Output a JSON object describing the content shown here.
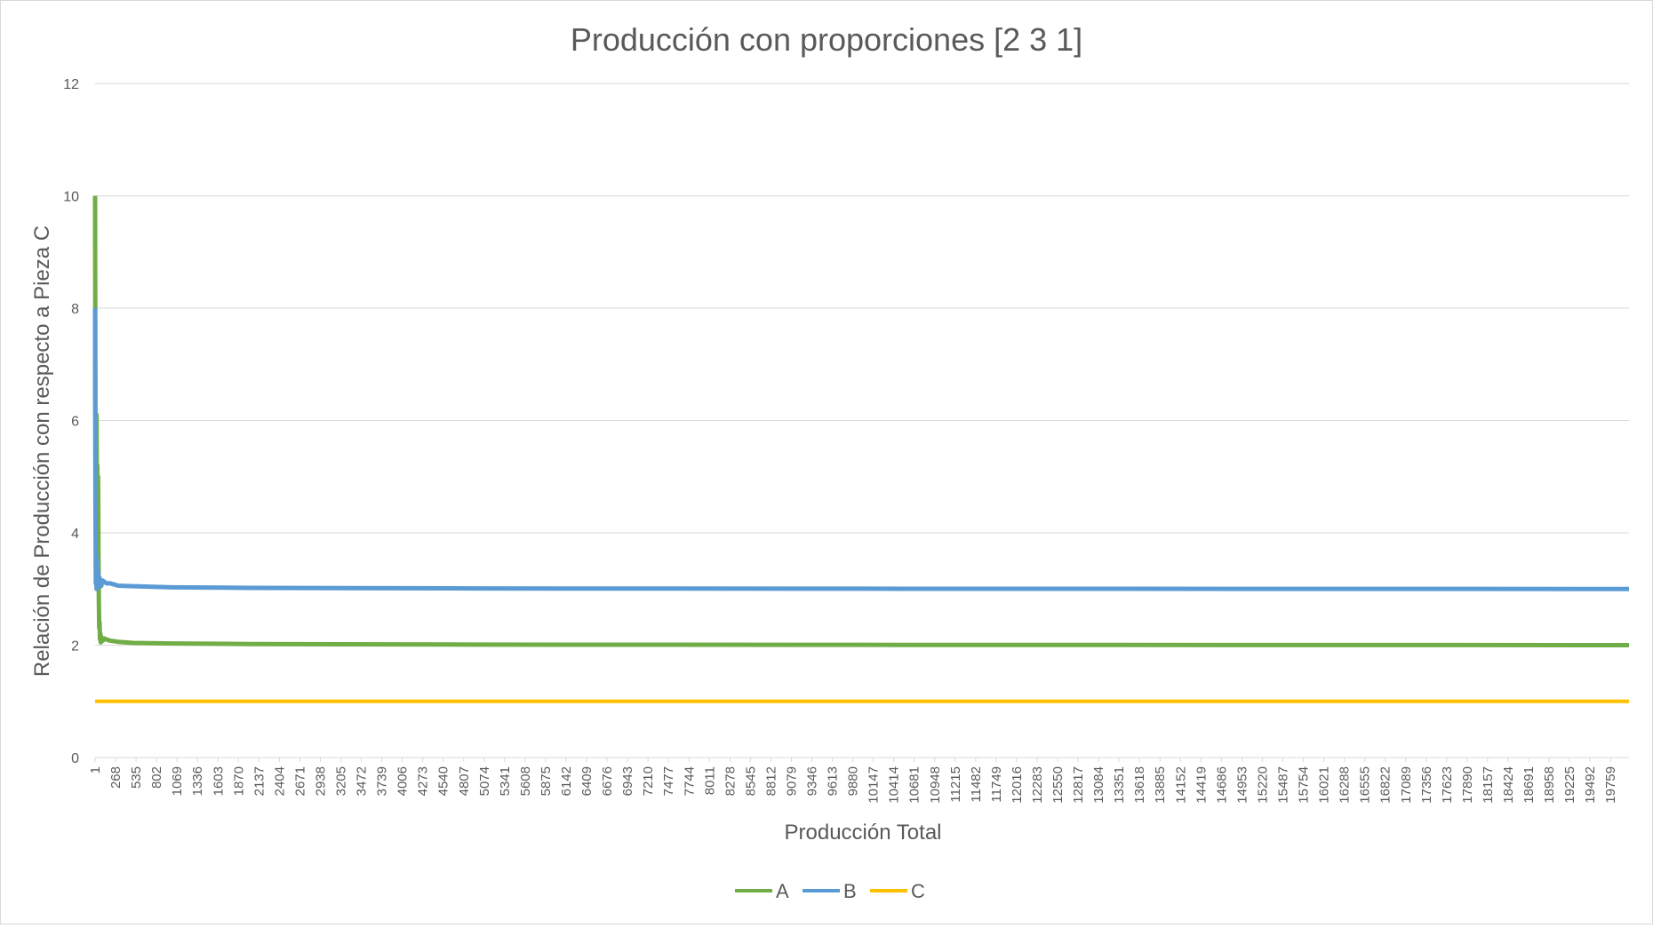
{
  "chart_data": {
    "type": "line",
    "title": "Producción con proporciones [2 3 1]",
    "xlabel": "Producción Total",
    "ylabel": "Relación de Producción con respecto a Pieza C",
    "ylim": [
      0,
      12
    ],
    "yticks": [
      0,
      2,
      4,
      6,
      8,
      10,
      12
    ],
    "xlim": [
      1,
      20000
    ],
    "xtick_labels": [
      1,
      268,
      535,
      802,
      1069,
      1336,
      1603,
      1870,
      2137,
      2404,
      2671,
      2938,
      3205,
      3472,
      3739,
      4006,
      4273,
      4540,
      4807,
      5074,
      5341,
      5608,
      5875,
      6142,
      6409,
      6676,
      6943,
      7210,
      7477,
      7744,
      8011,
      8278,
      8545,
      8812,
      9079,
      9346,
      9613,
      9880,
      10147,
      10414,
      10681,
      10948,
      11215,
      11482,
      11749,
      12016,
      12283,
      12550,
      12817,
      13084,
      13351,
      13618,
      13885,
      14152,
      14419,
      14686,
      14953,
      15220,
      15487,
      15754,
      16021,
      16288,
      16555,
      16822,
      17089,
      17356,
      17623,
      17890,
      18157,
      18424,
      18691,
      18958,
      19225,
      19492,
      19759
    ],
    "grid": true,
    "legend": "bottom",
    "series": [
      {
        "name": "A",
        "color": "#70ad47",
        "x": [
          1,
          5,
          10,
          15,
          20,
          25,
          30,
          35,
          40,
          45,
          50,
          55,
          60,
          65,
          70,
          75,
          80,
          90,
          100,
          120,
          150,
          200,
          300,
          500,
          1000,
          2000,
          5000,
          10000,
          20000
        ],
        "y": [
          10,
          6.2,
          5.8,
          4.4,
          6.1,
          4.3,
          5.2,
          4.6,
          5.0,
          3.6,
          2.8,
          2.3,
          2.4,
          2.1,
          2.2,
          2.05,
          2.15,
          2.1,
          2.08,
          2.12,
          2.1,
          2.08,
          2.06,
          2.04,
          2.03,
          2.02,
          2.01,
          2.005,
          2.0
        ]
      },
      {
        "name": "B",
        "color": "#5b9bd5",
        "x": [
          1,
          3,
          6,
          10,
          15,
          20,
          25,
          30,
          40,
          50,
          60,
          80,
          100,
          150,
          200,
          300,
          500,
          1000,
          2000,
          5000,
          10000,
          20000
        ],
        "y": [
          8.0,
          6.0,
          4.5,
          3.1,
          3.6,
          3.0,
          3.5,
          3.2,
          3.3,
          3.1,
          3.2,
          3.05,
          3.15,
          3.1,
          3.1,
          3.06,
          3.05,
          3.03,
          3.02,
          3.01,
          3.005,
          3.0
        ]
      },
      {
        "name": "C",
        "color": "#ffc000",
        "x": [
          1,
          20000
        ],
        "y": [
          1,
          1
        ]
      }
    ]
  }
}
